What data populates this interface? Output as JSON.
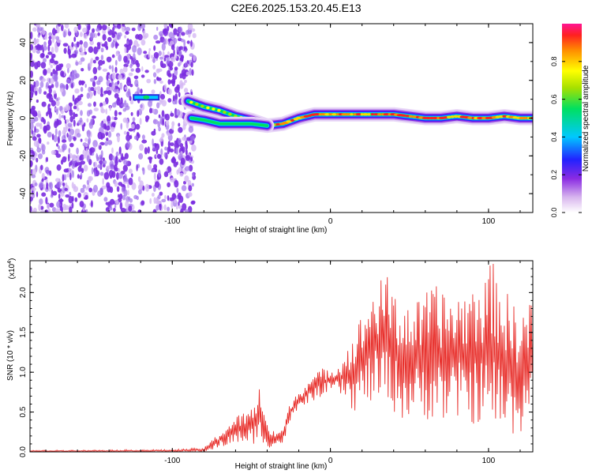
{
  "title": "C2E6.2025.153.20.45.E13",
  "chart_data": [
    {
      "type": "heatmap",
      "xlabel": "Height of straight line (km)",
      "ylabel": "Frequency (Hz)",
      "xlim": [
        -190,
        128
      ],
      "ylim": [
        -50,
        50
      ],
      "xticks": [
        -100,
        0,
        100
      ],
      "yticks": [
        -40,
        -20,
        0,
        20,
        40
      ],
      "colorbar": {
        "label": "Normalized spectral amplitude",
        "range": [
          0,
          1
        ],
        "ticks": [
          "0.0",
          "0.2",
          "0.4",
          "0.6",
          "0.8"
        ]
      },
      "noise_region_x": [
        -190,
        -86
      ],
      "isolated_echo": {
        "x": [
          -125,
          -108
        ],
        "y": 11
      },
      "main_trace": [
        {
          "x": -90,
          "y": 9
        },
        {
          "x": -80,
          "y": 6
        },
        {
          "x": -70,
          "y": 4
        },
        {
          "x": -60,
          "y": 1
        },
        {
          "x": -50,
          "y": -1
        },
        {
          "x": -40,
          "y": -4
        },
        {
          "x": -30,
          "y": -3
        },
        {
          "x": -20,
          "y": 0
        },
        {
          "x": -10,
          "y": 2
        },
        {
          "x": 0,
          "y": 2
        },
        {
          "x": 10,
          "y": 2
        },
        {
          "x": 20,
          "y": 2
        },
        {
          "x": 30,
          "y": 2
        },
        {
          "x": 40,
          "y": 2
        },
        {
          "x": 50,
          "y": 1
        },
        {
          "x": 60,
          "y": 0
        },
        {
          "x": 70,
          "y": 0
        },
        {
          "x": 80,
          "y": 1
        },
        {
          "x": 90,
          "y": 0
        },
        {
          "x": 100,
          "y": 0
        },
        {
          "x": 110,
          "y": 1
        },
        {
          "x": 120,
          "y": 0
        },
        {
          "x": 128,
          "y": 0
        }
      ],
      "secondary_trace": [
        {
          "x": -88,
          "y": 0
        },
        {
          "x": -80,
          "y": -1
        },
        {
          "x": -70,
          "y": -3
        },
        {
          "x": -60,
          "y": -3
        },
        {
          "x": -50,
          "y": -3
        },
        {
          "x": -40,
          "y": -4
        }
      ]
    },
    {
      "type": "line",
      "xlabel": "Height of straight line (km)",
      "ylabel": "SNR (10 * v/v)",
      "y_multiplier": "(x10",
      "y_multiplier_exp": "4",
      "y_multiplier_close": ")",
      "xlim": [
        -190,
        128
      ],
      "ylim": [
        0,
        2.4
      ],
      "xticks": [
        -100,
        0,
        100
      ],
      "yticks": [
        "0.0",
        "0.5",
        "1.0",
        "1.5",
        "2.0"
      ],
      "series": [
        {
          "name": "SNR",
          "color": "#e8302c",
          "envelope": [
            {
              "x": -190,
              "lo": 0.0,
              "hi": 0.02
            },
            {
              "x": -100,
              "lo": 0.0,
              "hi": 0.03
            },
            {
              "x": -80,
              "lo": 0.0,
              "hi": 0.05
            },
            {
              "x": -70,
              "lo": 0.05,
              "hi": 0.25
            },
            {
              "x": -60,
              "lo": 0.1,
              "hi": 0.45
            },
            {
              "x": -50,
              "lo": 0.1,
              "hi": 0.55
            },
            {
              "x": -45,
              "lo": 0.1,
              "hi": 0.85
            },
            {
              "x": -38,
              "lo": 0.05,
              "hi": 0.25
            },
            {
              "x": -30,
              "lo": 0.1,
              "hi": 0.3
            },
            {
              "x": -25,
              "lo": 0.4,
              "hi": 0.65
            },
            {
              "x": -15,
              "lo": 0.6,
              "hi": 0.9
            },
            {
              "x": -5,
              "lo": 0.7,
              "hi": 1.05
            },
            {
              "x": 5,
              "lo": 0.75,
              "hi": 1.1
            },
            {
              "x": 15,
              "lo": 0.5,
              "hi": 1.5
            },
            {
              "x": 25,
              "lo": 0.6,
              "hi": 2.0
            },
            {
              "x": 35,
              "lo": 0.6,
              "hi": 2.25
            },
            {
              "x": 45,
              "lo": 0.4,
              "hi": 1.9
            },
            {
              "x": 55,
              "lo": 0.4,
              "hi": 1.9
            },
            {
              "x": 65,
              "lo": 0.4,
              "hi": 2.1
            },
            {
              "x": 75,
              "lo": 0.35,
              "hi": 2.0
            },
            {
              "x": 85,
              "lo": 0.4,
              "hi": 2.05
            },
            {
              "x": 95,
              "lo": 0.3,
              "hi": 2.2
            },
            {
              "x": 103,
              "lo": 0.25,
              "hi": 2.4
            },
            {
              "x": 112,
              "lo": 0.2,
              "hi": 2.0
            },
            {
              "x": 120,
              "lo": 0.2,
              "hi": 1.8
            },
            {
              "x": 128,
              "lo": 0.6,
              "hi": 1.9
            }
          ]
        }
      ]
    }
  ]
}
